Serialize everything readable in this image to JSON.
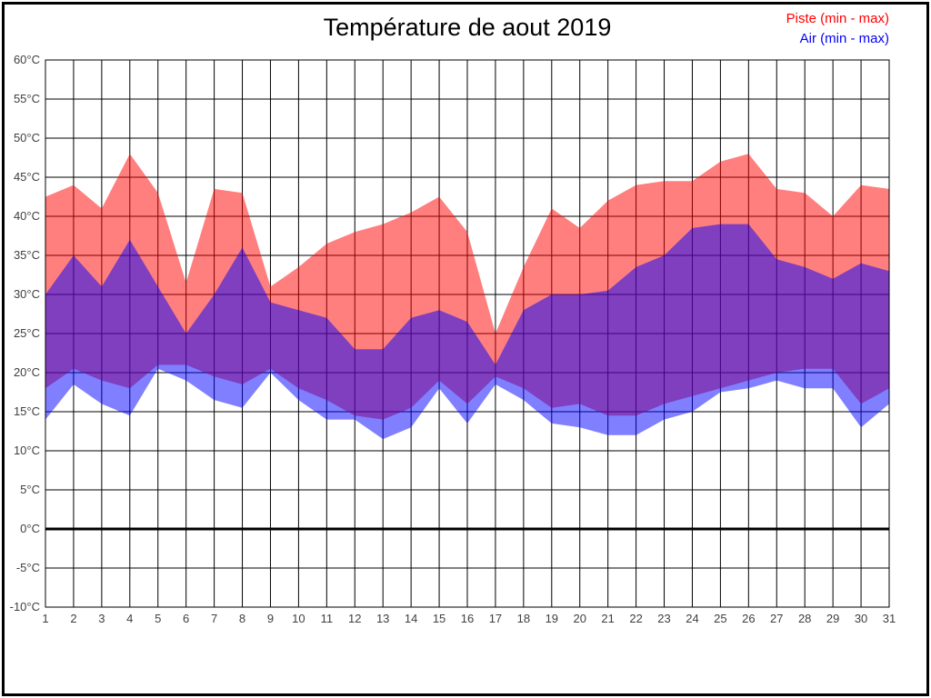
{
  "title": "Température de aout 2019",
  "legend": {
    "piste": "Piste (min - max)",
    "air": "Air (min - max)"
  },
  "colors": {
    "piste": "#ff0000",
    "air": "#0000ff",
    "grid": "#000000",
    "axis_text": "#404040",
    "band_opacity": 0.5
  },
  "chart_data": {
    "type": "area",
    "title": "Température de aout 2019",
    "legend_position": "top-right",
    "grid": true,
    "x_label_unit": "day of month (aout 2019)",
    "ylim": [
      -10,
      60
    ],
    "y_tick_step": 5,
    "y_tick_values": [
      60,
      55,
      50,
      45,
      40,
      35,
      30,
      25,
      20,
      15,
      10,
      5,
      0,
      -5,
      -10
    ],
    "y_tick_labels": [
      "60°C",
      "55°C",
      "50°C",
      "45°C",
      "40°C",
      "35°C",
      "30°C",
      "25°C",
      "20°C",
      "15°C",
      "10°C",
      "5°C",
      "0°C",
      "-5°C",
      "-10°C"
    ],
    "zero_line_value": 0,
    "days": [
      1,
      2,
      3,
      4,
      5,
      6,
      7,
      8,
      9,
      10,
      11,
      12,
      13,
      14,
      15,
      16,
      17,
      18,
      19,
      20,
      21,
      22,
      23,
      24,
      25,
      26,
      27,
      28,
      29,
      30,
      31
    ],
    "series": [
      {
        "name": "Piste (min - max)",
        "color": "#ff0000",
        "min": [
          18,
          20.5,
          19,
          18,
          21,
          21,
          19.5,
          18.5,
          20.5,
          18,
          16.5,
          14.5,
          14,
          15.5,
          19,
          16,
          19.5,
          18,
          15.5,
          16,
          14.5,
          14.5,
          16,
          17,
          18,
          19,
          20,
          20.5,
          20.5,
          16,
          18
        ],
        "max": [
          42.5,
          44,
          41,
          48,
          43,
          31.5,
          43.5,
          43,
          31,
          33.5,
          36.5,
          38,
          39,
          40.5,
          42.5,
          38,
          25,
          33.5,
          41,
          38.5,
          42,
          44,
          44.5,
          44.5,
          47,
          48,
          43.5,
          43,
          40,
          44,
          43.5
        ]
      },
      {
        "name": "Air (min - max)",
        "color": "#0000ff",
        "min": [
          14,
          18.5,
          16,
          14.5,
          20.5,
          19,
          16.5,
          15.5,
          20,
          16.5,
          14,
          14,
          11.5,
          13,
          18,
          13.5,
          18.5,
          16.5,
          13.5,
          13,
          12,
          12,
          14,
          15,
          17.5,
          18,
          19,
          18,
          18,
          13,
          16
        ],
        "max": [
          30,
          35,
          31,
          37,
          31,
          25,
          30,
          36,
          29,
          28,
          27,
          23,
          23,
          27,
          28,
          26.5,
          21,
          28,
          30,
          30,
          30.5,
          33.5,
          35,
          38.5,
          39,
          39,
          34.5,
          33.5,
          32,
          34,
          33
        ]
      }
    ]
  }
}
